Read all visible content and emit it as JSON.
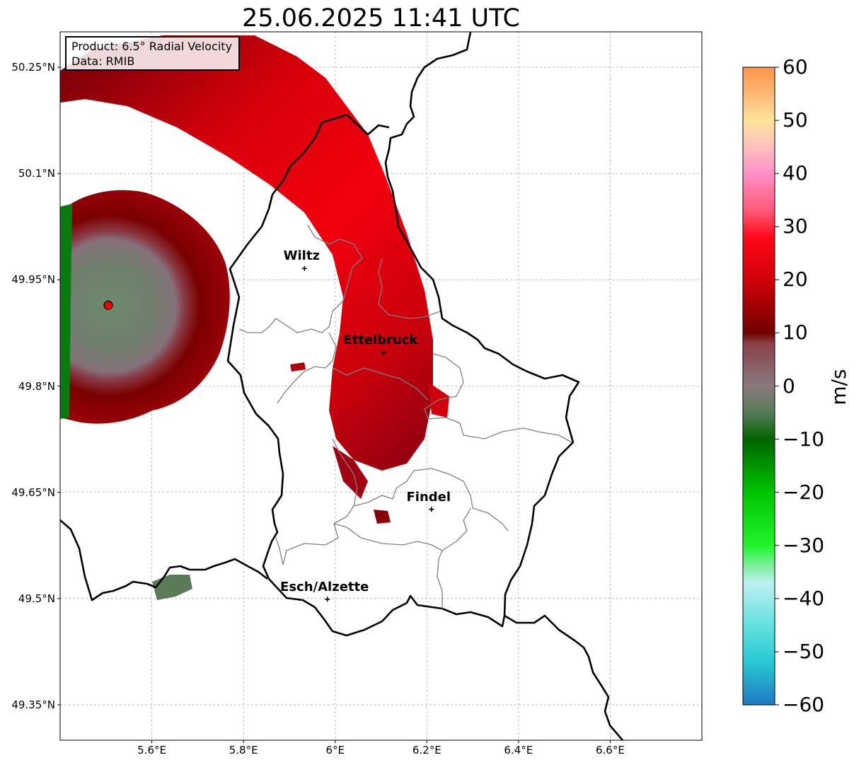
{
  "title": "25.06.2025 11:41 UTC",
  "info": {
    "product": "Product: 6.5° Radial Velocity",
    "data": "Data: RMIB"
  },
  "cities": [
    {
      "name": "Wiltz",
      "lon": 5.933,
      "lat": 49.966
    },
    {
      "name": "Ettelbruck",
      "lon": 6.105,
      "lat": 49.847
    },
    {
      "name": "Findel",
      "lon": 6.21,
      "lat": 49.626
    },
    {
      "name": "Esch/Alzette",
      "lon": 5.983,
      "lat": 49.499
    }
  ],
  "radar_site": {
    "lon": 5.505,
    "lat": 49.914
  },
  "axes": {
    "lon_labels": [
      "5.6°E",
      "5.8°E",
      "6°E",
      "6.2°E",
      "6.4°E",
      "6.6°E"
    ],
    "lat_labels": [
      "50.25°N",
      "50.1°N",
      "49.95°N",
      "49.8°N",
      "49.65°N",
      "49.5°N",
      "49.35°N"
    ],
    "lon_ticks": [
      5.6,
      5.8,
      6.0,
      6.2,
      6.4,
      6.6
    ],
    "lat_ticks": [
      50.25,
      50.1,
      49.95,
      49.8,
      49.65,
      49.5,
      49.35
    ],
    "lon_range": [
      5.4,
      6.8
    ],
    "lat_range": [
      49.3,
      50.3
    ],
    "grid": true
  },
  "colorbar": {
    "label": "m/s",
    "range": [
      -60,
      60
    ],
    "tick_labels": [
      "60",
      "50",
      "40",
      "30",
      "20",
      "10",
      "0",
      "−10",
      "−20",
      "−30",
      "−40",
      "−50",
      "−60"
    ],
    "stops": [
      {
        "v": -60,
        "c": "#1f78c0"
      },
      {
        "v": -52,
        "c": "#27c8d4"
      },
      {
        "v": -45,
        "c": "#62e2e0"
      },
      {
        "v": -37,
        "c": "#bdeff0"
      },
      {
        "v": -34,
        "c": "#7ff0a0"
      },
      {
        "v": -30,
        "c": "#1ff52a"
      },
      {
        "v": -20,
        "c": "#00c400"
      },
      {
        "v": -10,
        "c": "#006400"
      },
      {
        "v": -5,
        "c": "#567a56"
      },
      {
        "v": 0,
        "c": "#887a7e"
      },
      {
        "v": 8,
        "c": "#8a4048"
      },
      {
        "v": 10,
        "c": "#700000"
      },
      {
        "v": 20,
        "c": "#d00008"
      },
      {
        "v": 28,
        "c": "#ff0818"
      },
      {
        "v": 33,
        "c": "#ff5a78"
      },
      {
        "v": 40,
        "c": "#ff90c8"
      },
      {
        "v": 45,
        "c": "#ffc0bc"
      },
      {
        "v": 50,
        "c": "#ffe39c"
      },
      {
        "v": 55,
        "c": "#ffb873"
      },
      {
        "v": 60,
        "c": "#ff9448"
      }
    ]
  }
}
